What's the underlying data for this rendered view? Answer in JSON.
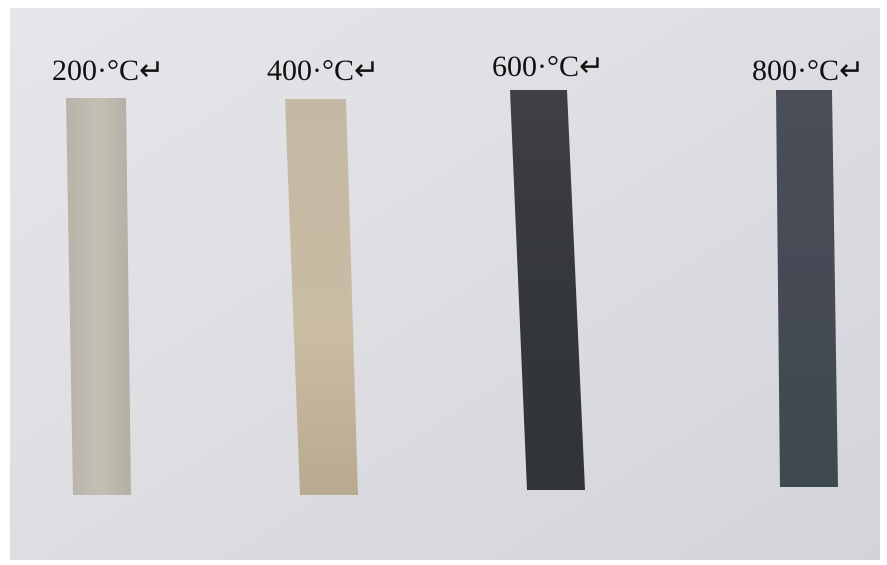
{
  "labels": [
    "200·°C↵",
    "400·°C↵",
    "600·°C↵",
    "800·°C↵"
  ]
}
